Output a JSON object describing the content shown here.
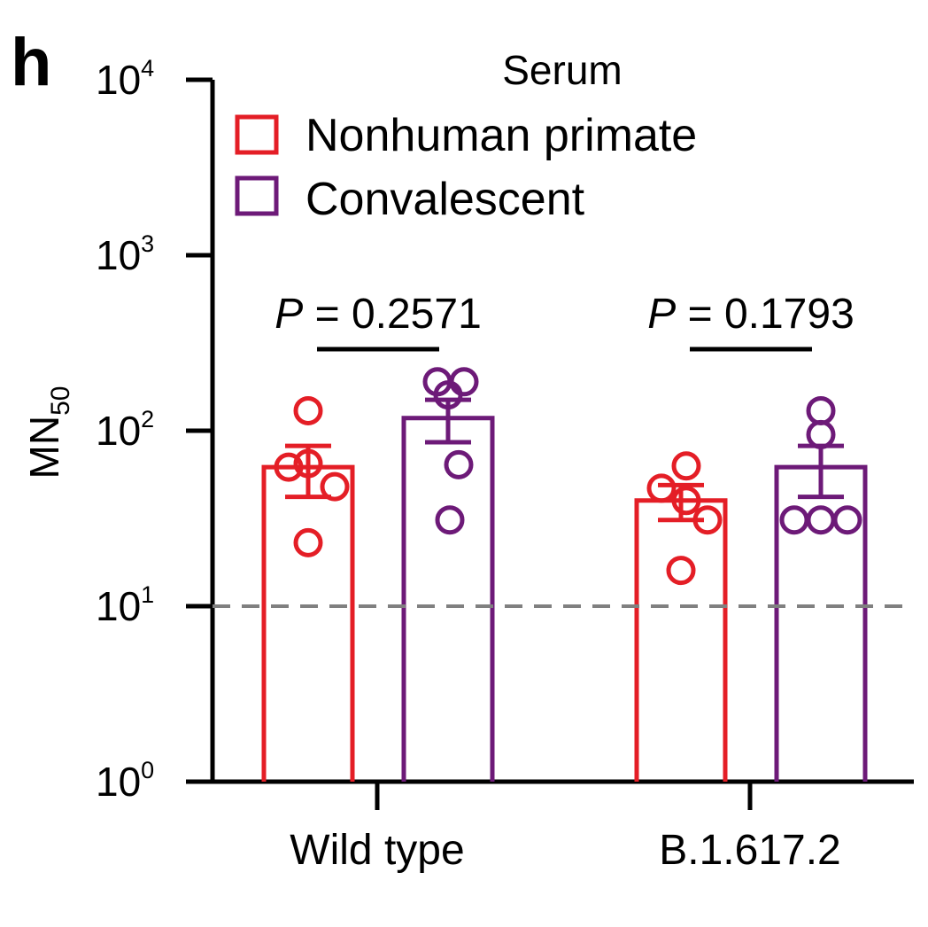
{
  "panel_label": "h",
  "colors": {
    "nhp": "#e41e26",
    "conv": "#6d1a78",
    "threshold": "#808080",
    "axis": "#000000"
  },
  "chart_data": {
    "type": "bar",
    "yscale": "log",
    "ylim": [
      1,
      10000
    ],
    "ylabel": {
      "main": "MN",
      "sub": "50"
    },
    "yticks": [
      {
        "value": 1,
        "base": "10",
        "exp": "0"
      },
      {
        "value": 10,
        "base": "10",
        "exp": "1"
      },
      {
        "value": 100,
        "base": "10",
        "exp": "2"
      },
      {
        "value": 1000,
        "base": "10",
        "exp": "3"
      },
      {
        "value": 10000,
        "base": "10",
        "exp": "4"
      }
    ],
    "categories": [
      "Wild type",
      "B.1.617.2"
    ],
    "legend": {
      "title": "Serum",
      "position": "top-left"
    },
    "detection_limit": 10,
    "series": [
      {
        "name": "Nonhuman primate",
        "color": "#e41e26",
        "values": [
          62,
          40
        ],
        "sem": [
          20,
          9
        ],
        "points": [
          [
            130,
            65,
            62,
            48,
            23
          ],
          [
            63,
            47,
            40,
            31,
            16
          ]
        ]
      },
      {
        "name": "Convalescent",
        "color": "#6d1a78",
        "values": [
          118,
          62
        ],
        "sem": [
          32,
          20
        ],
        "points": [
          [
            190,
            190,
            160,
            64,
            31
          ],
          [
            130,
            95,
            31,
            31,
            31
          ]
        ]
      }
    ],
    "comparisons": [
      {
        "category": "Wild type",
        "italic": "P",
        "text": " = 0.2571"
      },
      {
        "category": "B.1.617.2",
        "italic": "P",
        "text": " = 0.1793"
      }
    ]
  }
}
